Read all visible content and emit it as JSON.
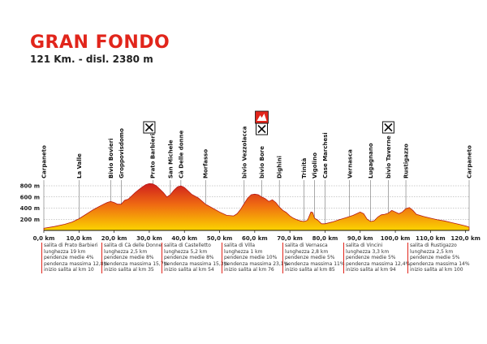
{
  "header": {
    "title": "GRAN FONDO",
    "subtitle": "121 Km. - disl. 2380 m"
  },
  "colors": {
    "accent": "#e1251b",
    "fill_top": "#d3201b",
    "fill_bottom": "#fbd400",
    "marker": "#e1251b"
  },
  "chart_data": {
    "type": "area",
    "title": "GRAN FONDO",
    "subtitle": "121 Km. - disl. 2380 m",
    "xlabel": "",
    "ylabel": "",
    "xlim": [
      0,
      121
    ],
    "ylim": [
      0,
      900
    ],
    "x_ticks": [
      "0,0 km",
      "10,0 km",
      "20,0 km",
      "30,0 km",
      "40,0 km",
      "50,0 km",
      "60,0 km",
      "70,0 km",
      "80,0 km",
      "90,0 km",
      "100,0 km",
      "110,0 km",
      "120,0 km"
    ],
    "x_tick_values": [
      0,
      10,
      20,
      30,
      40,
      50,
      60,
      70,
      80,
      90,
      100,
      110,
      120
    ],
    "y_ticks": [
      "200 m",
      "400 m",
      "600 m",
      "800 m"
    ],
    "y_tick_values": [
      200,
      400,
      600,
      800
    ],
    "profile": [
      [
        0,
        40
      ],
      [
        3,
        70
      ],
      [
        6,
        110
      ],
      [
        8,
        150
      ],
      [
        10,
        210
      ],
      [
        12,
        290
      ],
      [
        14,
        370
      ],
      [
        15.5,
        420
      ],
      [
        17,
        470
      ],
      [
        18,
        500
      ],
      [
        19,
        520
      ],
      [
        20,
        500
      ],
      [
        21,
        470
      ],
      [
        22,
        470
      ],
      [
        23,
        540
      ],
      [
        24,
        560
      ],
      [
        25,
        620
      ],
      [
        26,
        680
      ],
      [
        27,
        730
      ],
      [
        28,
        780
      ],
      [
        29,
        820
      ],
      [
        30,
        840
      ],
      [
        31,
        835
      ],
      [
        32,
        800
      ],
      [
        33,
        740
      ],
      [
        34,
        680
      ],
      [
        35,
        600
      ],
      [
        36,
        640
      ],
      [
        37,
        720
      ],
      [
        38,
        780
      ],
      [
        39,
        800
      ],
      [
        40,
        770
      ],
      [
        41,
        710
      ],
      [
        42,
        650
      ],
      [
        44,
        580
      ],
      [
        46,
        470
      ],
      [
        48,
        400
      ],
      [
        50,
        330
      ],
      [
        52,
        270
      ],
      [
        54,
        260
      ],
      [
        55,
        300
      ],
      [
        56,
        380
      ],
      [
        57,
        480
      ],
      [
        58,
        580
      ],
      [
        59,
        640
      ],
      [
        60,
        650
      ],
      [
        61,
        640
      ],
      [
        62,
        600
      ],
      [
        63,
        570
      ],
      [
        64,
        520
      ],
      [
        65,
        550
      ],
      [
        66,
        500
      ],
      [
        67,
        420
      ],
      [
        68,
        360
      ],
      [
        69,
        320
      ],
      [
        70,
        260
      ],
      [
        71,
        220
      ],
      [
        72,
        190
      ],
      [
        73,
        170
      ],
      [
        74,
        160
      ],
      [
        75,
        180
      ],
      [
        76,
        330
      ],
      [
        76.5,
        320
      ],
      [
        77,
        220
      ],
      [
        78,
        180
      ],
      [
        79,
        120
      ],
      [
        80,
        120
      ],
      [
        82,
        150
      ],
      [
        84,
        190
      ],
      [
        86,
        230
      ],
      [
        88,
        270
      ],
      [
        89,
        300
      ],
      [
        90,
        330
      ],
      [
        91,
        300
      ],
      [
        92,
        200
      ],
      [
        93,
        160
      ],
      [
        94,
        175
      ],
      [
        95,
        240
      ],
      [
        96,
        280
      ],
      [
        97,
        290
      ],
      [
        98,
        310
      ],
      [
        99,
        360
      ],
      [
        100,
        330
      ],
      [
        101,
        300
      ],
      [
        102,
        330
      ],
      [
        103,
        390
      ],
      [
        104,
        410
      ],
      [
        105,
        360
      ],
      [
        106,
        290
      ],
      [
        108,
        250
      ],
      [
        110,
        220
      ],
      [
        112,
        190
      ],
      [
        114,
        170
      ],
      [
        116,
        140
      ],
      [
        118,
        110
      ],
      [
        120,
        80
      ],
      [
        121,
        60
      ]
    ],
    "waypoints": [
      {
        "name": "Carpaneto",
        "km": 0
      },
      {
        "name": "La Valle",
        "km": 10
      },
      {
        "name": "Bivio Bovieri",
        "km": 19
      },
      {
        "name": "Groppovisdomo",
        "km": 22
      },
      {
        "name": "Prato Barbieri",
        "km": 31
      },
      {
        "name": "San Michele",
        "km": 36
      },
      {
        "name": "Cà Delle donne",
        "km": 39
      },
      {
        "name": "Morfasso",
        "km": 46
      },
      {
        "name": "bivio Vezzolacca",
        "km": 57
      },
      {
        "name": "bivio Bore",
        "km": 62
      },
      {
        "name": "Dighini",
        "km": 67
      },
      {
        "name": "Trinità",
        "km": 74
      },
      {
        "name": "Vigolino",
        "km": 77
      },
      {
        "name": "Case Marchesi",
        "km": 80
      },
      {
        "name": "Vernasca",
        "km": 87
      },
      {
        "name": "Lugagnano",
        "km": 93
      },
      {
        "name": "bivio Taverne",
        "km": 98
      },
      {
        "name": "Rustigazzo",
        "km": 103
      },
      {
        "name": "Carpaneto",
        "km": 121
      }
    ],
    "markers": [
      {
        "type": "refreshment",
        "km": 30
      },
      {
        "type": "gpm",
        "km": 62
      },
      {
        "type": "refreshment",
        "km": 62
      },
      {
        "type": "refreshment",
        "km": 98
      }
    ]
  },
  "climbs": [
    {
      "name": "salita di Prato Barbieri",
      "length": "lunghezza 19 km",
      "avg": "pendenze medie 4%",
      "max": "pendenza massima 12,8%",
      "start": "inizio salita al km 10"
    },
    {
      "name": "salita di Cà delle Donne",
      "length": "lunghezza 2,5 km",
      "avg": "pendenze medie 8%",
      "max": "pendenza massima 15,7%",
      "start": "inizio salita al km 35"
    },
    {
      "name": "salita di Castelletto",
      "length": "lunghezza 5,2 km",
      "avg": "pendenze medie 8%",
      "max": "pendenza massima 15,3%",
      "start": "inizio salita al km 54"
    },
    {
      "name": "salita di Villa",
      "length": "lunghezza 1 km",
      "avg": "pendenze medie 10%",
      "max": "pendenza massima 23,1%",
      "start": "inizio salita al km 76"
    },
    {
      "name": "salita di Vernasca",
      "length": "lunghezza 2,8 km",
      "avg": "pendenze medie 5%",
      "max": "pendenza massima 11%",
      "start": "inizio salita al km 85"
    },
    {
      "name": "salita di Vincini",
      "length": "lunghezza 3,3 km",
      "avg": "pendenze medie 5%",
      "max": "pendenza massima 12,4%",
      "start": "inizio salita al km 94"
    },
    {
      "name": "salita di Rustigazzo",
      "length": "lunghezza 2,5 km",
      "avg": "pendenze medie 5%",
      "max": "pendenza massima 14%",
      "start": "inizio salita al km 100"
    }
  ]
}
